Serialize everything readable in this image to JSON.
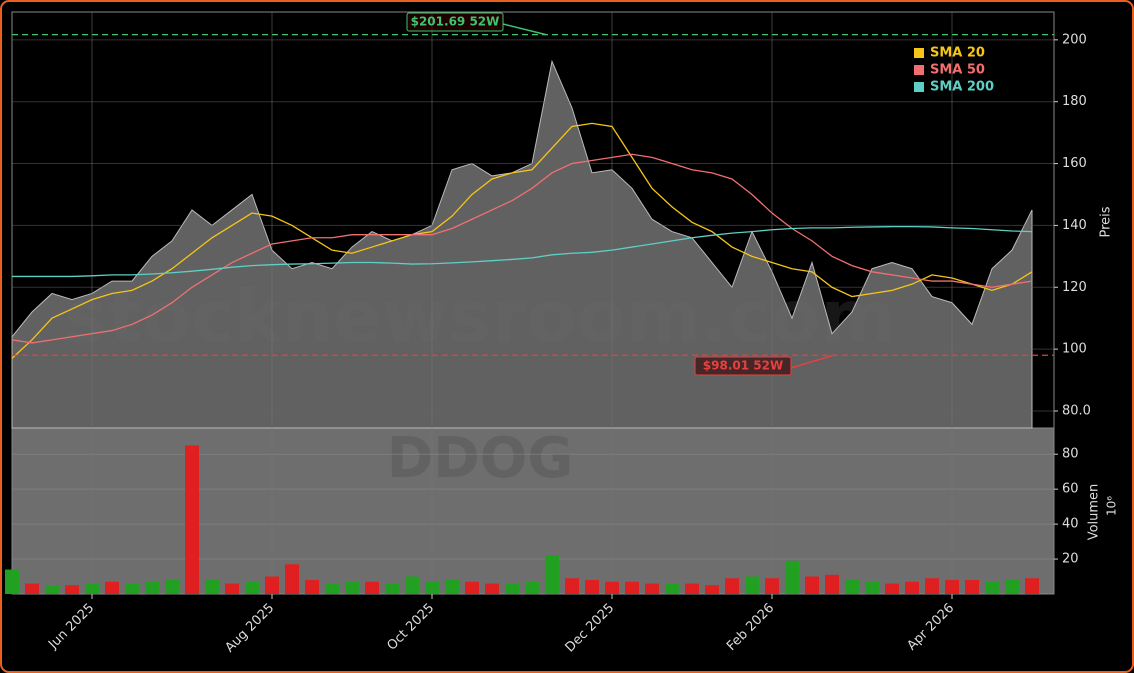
{
  "chart_data": [
    {
      "type": "area",
      "watermark": "stocknewsroom.com",
      "y_label": "Preis",
      "color": "#6b6b6b",
      "values": [
        104,
        112,
        118,
        116,
        118,
        122,
        122,
        130,
        135,
        145,
        140,
        145,
        150,
        132,
        126,
        128,
        126,
        133,
        138,
        135,
        137,
        140,
        158,
        160,
        156,
        157,
        160,
        193,
        178,
        157,
        158,
        152,
        142,
        138,
        136,
        128,
        120,
        138,
        125,
        110,
        128,
        105,
        112,
        126,
        128,
        126,
        117,
        115,
        108,
        126,
        132,
        145
      ],
      "series": [
        {
          "name": "SMA 20",
          "color": "#f5c518",
          "values": [
            97,
            103,
            110,
            113,
            116,
            118,
            119,
            122,
            126,
            131,
            136,
            140,
            144,
            143,
            140,
            136,
            132,
            131,
            133,
            135,
            137,
            138,
            143,
            150,
            155,
            157,
            158,
            165,
            172,
            173,
            172,
            162,
            152,
            146,
            141,
            138,
            133,
            130,
            128,
            126,
            125,
            120,
            117,
            118,
            119,
            121,
            124,
            123,
            121,
            119,
            121,
            125
          ]
        },
        {
          "name": "SMA 50",
          "color": "#f07070",
          "values": [
            103,
            102,
            103,
            104,
            105,
            106,
            108,
            111,
            115,
            120,
            124,
            128,
            131,
            134,
            135,
            136,
            136,
            137,
            137,
            137,
            137,
            137,
            139,
            142,
            145,
            148,
            152,
            157,
            160,
            161,
            162,
            163,
            162,
            160,
            158,
            157,
            155,
            150,
            144,
            139,
            135,
            130,
            127,
            125,
            124,
            123,
            122,
            122,
            121,
            120,
            121,
            122
          ]
        },
        {
          "name": "SMA 200",
          "color": "#5ecfc4",
          "values": [
            123.5,
            123.5,
            123.5,
            123.5,
            123.7,
            124,
            124,
            124.3,
            124.7,
            125.2,
            125.8,
            126.5,
            127,
            127.3,
            127.5,
            127.6,
            127.8,
            128,
            128,
            127.8,
            127.5,
            127.6,
            127.9,
            128.2,
            128.6,
            129,
            129.5,
            130.5,
            131,
            131.3,
            132,
            133,
            134,
            135,
            136,
            136.8,
            137.5,
            138,
            138.6,
            139,
            139.2,
            139.2,
            139.4,
            139.5,
            139.6,
            139.6,
            139.5,
            139.2,
            139,
            138.6,
            138.2,
            138
          ]
        }
      ],
      "annotations": [
        {
          "value": 201.69,
          "label": "$201.69 52W",
          "color": "#3ec46d"
        },
        {
          "value": 98.01,
          "label": "$98.01 52W",
          "color": "#e84040"
        }
      ],
      "ylim": [
        74.5,
        209
      ],
      "yticks": [
        {
          "value": 80,
          "label": "80.0"
        },
        100,
        120,
        140,
        160,
        180,
        200
      ],
      "grid": true,
      "legend": "upper right"
    },
    {
      "type": "bar",
      "watermark": "DDOG",
      "y_label": "Volumen",
      "y_unit": "10⁶",
      "categories": [
        null,
        null,
        null,
        null,
        "Jun 2025",
        null,
        null,
        null,
        null,
        null,
        null,
        null,
        null,
        "Aug 2025",
        null,
        null,
        null,
        null,
        null,
        null,
        null,
        "Oct 2025",
        null,
        null,
        null,
        null,
        null,
        null,
        null,
        null,
        "Dec 2025",
        null,
        null,
        null,
        null,
        null,
        null,
        null,
        "Feb 2026",
        null,
        null,
        null,
        null,
        null,
        null,
        null,
        null,
        "Apr 2026",
        null,
        null,
        null,
        null
      ],
      "values": [
        14,
        6,
        5,
        5,
        6,
        7,
        6,
        7,
        8,
        85,
        8,
        6,
        7,
        10,
        17,
        8,
        6,
        7,
        7,
        6,
        10,
        7,
        8,
        7,
        6,
        6,
        7,
        22,
        9,
        8,
        7,
        7,
        6,
        6,
        6,
        5,
        9,
        10,
        9,
        19,
        10,
        11,
        8,
        7,
        6,
        7,
        9,
        8,
        8,
        7,
        8,
        9
      ],
      "colors": [
        "#22a022",
        "#e02020",
        "#22a022",
        "#e02020",
        "#22a022",
        "#e02020",
        "#22a022",
        "#22a022",
        "#22a022",
        "#e02020",
        "#22a022",
        "#e02020",
        "#22a022",
        "#e02020",
        "#e02020",
        "#e02020",
        "#22a022",
        "#22a022",
        "#e02020",
        "#22a022",
        "#22a022",
        "#22a022",
        "#22a022",
        "#e02020",
        "#e02020",
        "#22a022",
        "#22a022",
        "#22a022",
        "#e02020",
        "#e02020",
        "#e02020",
        "#e02020",
        "#e02020",
        "#22a022",
        "#e02020",
        "#e02020",
        "#e02020",
        "#22a022",
        "#e02020",
        "#22a022",
        "#e02020",
        "#e02020",
        "#22a022",
        "#22a022",
        "#e02020",
        "#e02020",
        "#e02020",
        "#e02020",
        "#e02020",
        "#22a022",
        "#22a022",
        "#e02020"
      ],
      "ylim": [
        0,
        95
      ],
      "yticks": [
        20,
        40,
        60,
        80
      ],
      "grid": true
    }
  ]
}
